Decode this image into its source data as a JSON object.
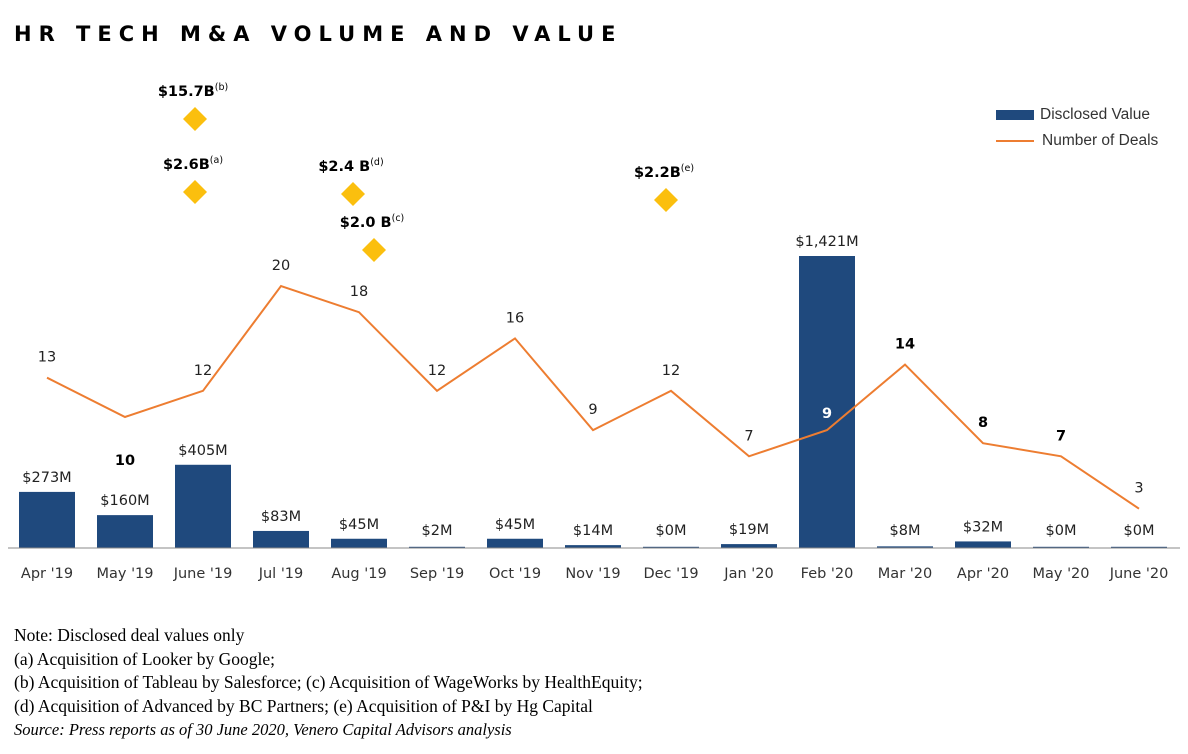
{
  "colors": {
    "bar": "#1f497d",
    "line": "#ed7d31",
    "diamond": "#fbbf0e",
    "axis": "#888888"
  },
  "legend": {
    "bar_label": "Disclosed Value",
    "line_label": "Number of Deals"
  },
  "chart_data": {
    "type": "bar",
    "title": "HR TECH M&A VOLUME AND VALUE",
    "categories": [
      "Apr '19",
      "May '19",
      "June '19",
      "Jul '19",
      "Aug '19",
      "Sep '19",
      "Oct '19",
      "Nov '19",
      "Dec '19",
      "Jan '20",
      "Feb '20",
      "Mar '20",
      "Apr '20",
      "May '20",
      "June '20"
    ],
    "series": [
      {
        "name": "Disclosed Value",
        "type": "bar",
        "unit": "$M",
        "values": [
          273,
          160,
          405,
          83,
          45,
          2,
          45,
          14,
          0,
          19,
          1421,
          8,
          32,
          0,
          0
        ],
        "labels": [
          "$273M",
          "$160M",
          "$405M",
          "$83M",
          "$45M",
          "$2M",
          "$45M",
          "$14M",
          "$0M",
          "$19M",
          "$1,421M",
          "$8M",
          "$32M",
          "$0M",
          "$0M"
        ]
      },
      {
        "name": "Number of Deals",
        "type": "line",
        "values": [
          13,
          10,
          12,
          20,
          18,
          12,
          16,
          9,
          12,
          7,
          9,
          14,
          8,
          7,
          3
        ],
        "labels": [
          "13",
          "10",
          "12",
          "20",
          "18",
          "12",
          "16",
          "9",
          "12",
          "7",
          "9",
          "14",
          "8",
          "7",
          "3"
        ]
      }
    ],
    "large_deals": [
      {
        "category": "June '19",
        "value_b": 15.7,
        "label": "$15.7B",
        "note": "(b)"
      },
      {
        "category": "June '19",
        "value_b": 2.6,
        "label": "$2.6B",
        "note": "(a)"
      },
      {
        "category": "Aug '19",
        "value_b": 2.4,
        "label": "$2.4 B",
        "note": "(d)"
      },
      {
        "category": "Aug '19",
        "value_b": 2.0,
        "label": "$2.0 B",
        "note": "(c)"
      },
      {
        "category": "Dec '19",
        "value_b": 2.2,
        "label": "$2.2B",
        "note": "(e)"
      }
    ],
    "ylim_bar": [
      0,
      1500
    ],
    "ylim_line": [
      0,
      30
    ],
    "grid": false,
    "legend_position": "top-right"
  },
  "footnotes": {
    "note": "Note: Disclosed deal values only",
    "line_a": "(a) Acquisition of Looker by Google;",
    "line_bc": "(b) Acquisition of Tableau by Salesforce; (c) Acquisition of WageWorks by HealthEquity;",
    "line_de": "(d) Acquisition of Advanced by BC Partners; (e) Acquisition of P&I by Hg Capital",
    "source": "Source: Press reports as of 30 June 2020, Venero Capital Advisors analysis"
  }
}
